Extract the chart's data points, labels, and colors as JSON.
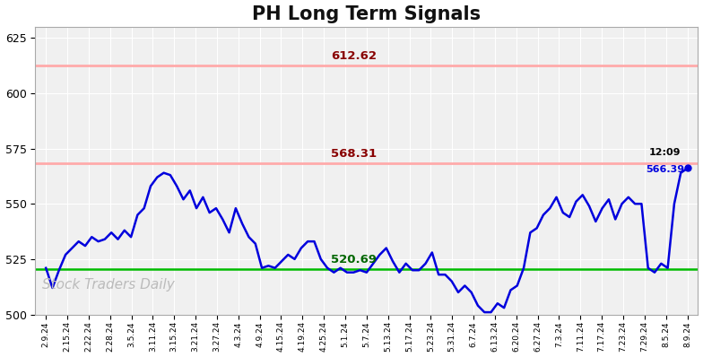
{
  "title": "PH Long Term Signals",
  "title_fontsize": 15,
  "title_fontweight": "bold",
  "ylim": [
    500,
    630
  ],
  "yticks": [
    500,
    525,
    550,
    575,
    600,
    625
  ],
  "background_color": "#ffffff",
  "plot_bg_color": "#f0f0f0",
  "line_color": "#0000dd",
  "line_width": 1.8,
  "hline_upper_value": 612.62,
  "hline_upper_color": "#ffaaaa",
  "hline_upper_label_color": "#880000",
  "hline_lower_value": 568.31,
  "hline_lower_color": "#ffaaaa",
  "hline_lower_label_color": "#880000",
  "hline_green_value": 520.69,
  "hline_green_color": "#00bb00",
  "hline_green_label_color": "#006600",
  "last_value": 566.39,
  "last_time": "12:09",
  "last_dot_color": "#0000dd",
  "watermark": "Stock Traders Daily",
  "watermark_color": "#bbbbbb",
  "watermark_fontsize": 11,
  "xlabel_fontsize": 6.5,
  "ylabel_fontsize": 9,
  "x_labels": [
    "2.9.24",
    "2.15.24",
    "2.22.24",
    "2.28.24",
    "3.5.24",
    "3.11.24",
    "3.15.24",
    "3.21.24",
    "3.27.24",
    "4.3.24",
    "4.9.24",
    "4.15.24",
    "4.19.24",
    "4.25.24",
    "5.1.24",
    "5.7.24",
    "5.13.24",
    "5.17.24",
    "5.23.24",
    "5.31.24",
    "6.7.24",
    "6.13.24",
    "6.20.24",
    "6.27.24",
    "7.3.24",
    "7.11.24",
    "7.17.24",
    "7.23.24",
    "7.29.24",
    "8.5.24",
    "8.9.24"
  ],
  "y_values": [
    521,
    512,
    520,
    527,
    530,
    533,
    531,
    535,
    533,
    534,
    537,
    534,
    538,
    535,
    545,
    548,
    558,
    562,
    564,
    563,
    558,
    552,
    556,
    548,
    553,
    546,
    548,
    543,
    537,
    548,
    541,
    535,
    532,
    521,
    522,
    521,
    524,
    527,
    525,
    530,
    533,
    533,
    525,
    521,
    519,
    521,
    519,
    519,
    520,
    519,
    523,
    527,
    530,
    524,
    519,
    523,
    520,
    520,
    523,
    528,
    518,
    518,
    515,
    510,
    513,
    510,
    504,
    501,
    501,
    505,
    503,
    511,
    513,
    521,
    537,
    539,
    545,
    548,
    553,
    546,
    544,
    551,
    554,
    549,
    542,
    548,
    552,
    543,
    550,
    553,
    550,
    550,
    521,
    519,
    523,
    521,
    550,
    564,
    566
  ]
}
